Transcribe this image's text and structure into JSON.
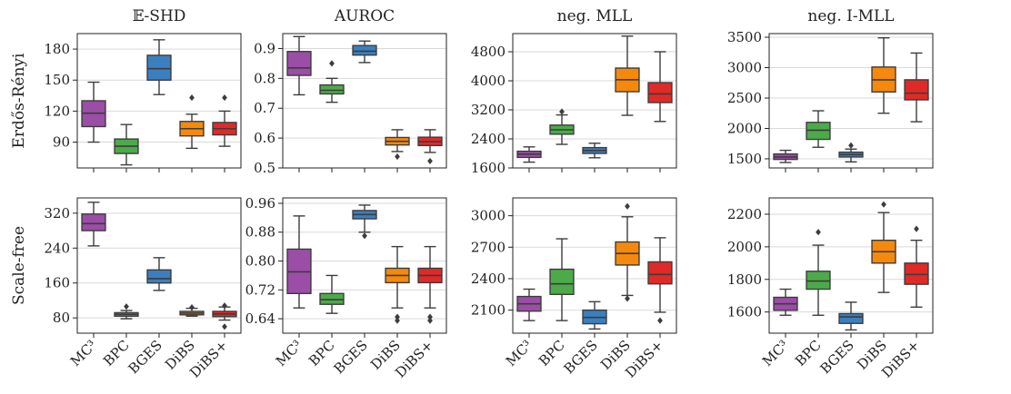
{
  "methods": [
    "MC³",
    "BPC",
    "BGES",
    "DiBS",
    "DiBS+"
  ],
  "colors": {
    "MC³": "#9b4ea6",
    "BPC": "#4daa4a",
    "BGES": "#3b7fbf",
    "DiBS": "#f4890c",
    "DiBS+": "#df2a28",
    "grid": "#d9d9d9",
    "line": "#3c3c3c"
  },
  "chart_data": [
    {
      "type": "box",
      "title": "𝔼-SHD",
      "row_label": "Erdős-Rényi",
      "categories": [
        "MC³",
        "BPC",
        "BGES",
        "DiBS",
        "DiBS+"
      ],
      "ylim": [
        65,
        195
      ],
      "yticks": [
        90,
        120,
        150,
        180
      ],
      "boxes": [
        {
          "name": "MC³",
          "whislo": 90,
          "q1": 105,
          "median": 118,
          "q3": 130,
          "whishi": 148,
          "fliers": []
        },
        {
          "name": "BPC",
          "whislo": 68,
          "q1": 79,
          "median": 86,
          "q3": 93,
          "whishi": 107,
          "fliers": []
        },
        {
          "name": "BGES",
          "whislo": 136,
          "q1": 150,
          "median": 161,
          "q3": 174,
          "whishi": 189,
          "fliers": []
        },
        {
          "name": "DiBS",
          "whislo": 84,
          "q1": 96,
          "median": 103,
          "q3": 110,
          "whishi": 117,
          "fliers": [
            133
          ]
        },
        {
          "name": "DiBS+",
          "whislo": 86,
          "q1": 97,
          "median": 103,
          "q3": 109,
          "whishi": 120,
          "fliers": [
            133
          ]
        }
      ]
    },
    {
      "type": "box",
      "title": "AUROC",
      "row_label": "",
      "categories": [
        "MC³",
        "BPC",
        "BGES",
        "DiBS",
        "DiBS+"
      ],
      "ylim": [
        0.5,
        0.95
      ],
      "yticks": [
        0.5,
        0.6,
        0.7,
        0.8,
        0.9
      ],
      "ytick_labels": [
        "0.5",
        "0.6",
        "0.7",
        "0.8",
        "0.9"
      ],
      "boxes": [
        {
          "name": "MC³",
          "whislo": 0.745,
          "q1": 0.81,
          "median": 0.835,
          "q3": 0.89,
          "whishi": 0.94,
          "fliers": []
        },
        {
          "name": "BPC",
          "whislo": 0.72,
          "q1": 0.748,
          "median": 0.76,
          "q3": 0.778,
          "whishi": 0.8,
          "fliers": [
            0.85
          ]
        },
        {
          "name": "BGES",
          "whislo": 0.853,
          "q1": 0.878,
          "median": 0.891,
          "q3": 0.91,
          "whishi": 0.925,
          "fliers": []
        },
        {
          "name": "DiBS",
          "whislo": 0.555,
          "q1": 0.577,
          "median": 0.589,
          "q3": 0.602,
          "whishi": 0.628,
          "fliers": [
            0.538
          ]
        },
        {
          "name": "DiBS+",
          "whislo": 0.552,
          "q1": 0.575,
          "median": 0.588,
          "q3": 0.603,
          "whishi": 0.628,
          "fliers": [
            0.523
          ]
        }
      ]
    },
    {
      "type": "box",
      "title": "neg. MLL",
      "row_label": "",
      "categories": [
        "MC³",
        "BPC",
        "BGES",
        "DiBS",
        "DiBS+"
      ],
      "ylim": [
        1600,
        5300
      ],
      "yticks": [
        1600,
        2400,
        3200,
        4000,
        4800
      ],
      "boxes": [
        {
          "name": "MC³",
          "whislo": 1760,
          "q1": 1890,
          "median": 1980,
          "q3": 2060,
          "whishi": 2180,
          "fliers": []
        },
        {
          "name": "BPC",
          "whislo": 2250,
          "q1": 2530,
          "median": 2650,
          "q3": 2780,
          "whishi": 3060,
          "fliers": [
            3150
          ]
        },
        {
          "name": "BGES",
          "whislo": 1880,
          "q1": 2000,
          "median": 2080,
          "q3": 2160,
          "whishi": 2280,
          "fliers": []
        },
        {
          "name": "DiBS",
          "whislo": 3050,
          "q1": 3700,
          "median": 4030,
          "q3": 4350,
          "whishi": 5230,
          "fliers": []
        },
        {
          "name": "DiBS+",
          "whislo": 2880,
          "q1": 3400,
          "median": 3640,
          "q3": 3950,
          "whishi": 4800,
          "fliers": []
        }
      ]
    },
    {
      "type": "box",
      "title": "neg. I-MLL",
      "row_label": "",
      "categories": [
        "MC³",
        "BPC",
        "BGES",
        "DiBS",
        "DiBS+"
      ],
      "ylim": [
        1350,
        3560
      ],
      "yticks": [
        1500,
        2000,
        2500,
        3000,
        3500
      ],
      "boxes": [
        {
          "name": "MC³",
          "whislo": 1440,
          "q1": 1490,
          "median": 1530,
          "q3": 1580,
          "whishi": 1640,
          "fliers": []
        },
        {
          "name": "BPC",
          "whislo": 1690,
          "q1": 1820,
          "median": 1970,
          "q3": 2100,
          "whishi": 2290,
          "fliers": []
        },
        {
          "name": "BGES",
          "whislo": 1450,
          "q1": 1530,
          "median": 1570,
          "q3": 1610,
          "whishi": 1660,
          "fliers": [
            1720
          ]
        },
        {
          "name": "DiBS",
          "whislo": 2250,
          "q1": 2600,
          "median": 2800,
          "q3": 3010,
          "whishi": 3490,
          "fliers": []
        },
        {
          "name": "DiBS+",
          "whislo": 2110,
          "q1": 2470,
          "median": 2580,
          "q3": 2800,
          "whishi": 3240,
          "fliers": []
        }
      ]
    },
    {
      "type": "box",
      "title": "",
      "row_label": "Scale-free",
      "categories": [
        "MC³",
        "BPC",
        "BGES",
        "DiBS",
        "DiBS+"
      ],
      "ylim": [
        45,
        355
      ],
      "yticks": [
        80,
        160,
        240,
        320
      ],
      "boxes": [
        {
          "name": "MC³",
          "whislo": 245,
          "q1": 280,
          "median": 296,
          "q3": 318,
          "whishi": 345,
          "fliers": []
        },
        {
          "name": "BPC",
          "whislo": 78,
          "q1": 84,
          "median": 88,
          "q3": 92,
          "whishi": 97,
          "fliers": [
            106
          ]
        },
        {
          "name": "BGES",
          "whislo": 143,
          "q1": 160,
          "median": 170,
          "q3": 190,
          "whishi": 218,
          "fliers": []
        },
        {
          "name": "DiBS",
          "whislo": 84,
          "q1": 87,
          "median": 91,
          "q3": 95,
          "whishi": 102,
          "fliers": [
            104
          ]
        },
        {
          "name": "DiBS+",
          "whislo": 75,
          "q1": 83,
          "median": 89,
          "q3": 95,
          "whishi": 105,
          "fliers": [
            60,
            108
          ]
        }
      ]
    },
    {
      "type": "box",
      "title": "",
      "row_label": "",
      "categories": [
        "MC³",
        "BPC",
        "BGES",
        "DiBS",
        "DiBS+"
      ],
      "ylim": [
        0.6,
        0.975
      ],
      "yticks": [
        0.64,
        0.72,
        0.8,
        0.88,
        0.96
      ],
      "ytick_labels": [
        "0.64",
        "0.72",
        "0.80",
        "0.88",
        "0.96"
      ],
      "boxes": [
        {
          "name": "MC³",
          "whislo": 0.67,
          "q1": 0.71,
          "median": 0.77,
          "q3": 0.833,
          "whishi": 0.925,
          "fliers": []
        },
        {
          "name": "BPC",
          "whislo": 0.655,
          "q1": 0.68,
          "median": 0.693,
          "q3": 0.71,
          "whishi": 0.76,
          "fliers": []
        },
        {
          "name": "BGES",
          "whislo": 0.88,
          "q1": 0.917,
          "median": 0.929,
          "q3": 0.94,
          "whishi": 0.955,
          "fliers": [
            0.87
          ]
        },
        {
          "name": "DiBS",
          "whislo": 0.67,
          "q1": 0.74,
          "median": 0.76,
          "q3": 0.78,
          "whishi": 0.84,
          "fliers": [
            0.645,
            0.635
          ]
        },
        {
          "name": "DiBS+",
          "whislo": 0.67,
          "q1": 0.74,
          "median": 0.76,
          "q3": 0.78,
          "whishi": 0.84,
          "fliers": [
            0.645,
            0.635
          ]
        }
      ]
    },
    {
      "type": "box",
      "title": "",
      "row_label": "",
      "categories": [
        "MC³",
        "BPC",
        "BGES",
        "DiBS",
        "DiBS+"
      ],
      "ylim": [
        1880,
        3170
      ],
      "yticks": [
        2100,
        2400,
        2700,
        3000
      ],
      "boxes": [
        {
          "name": "MC³",
          "whislo": 2000,
          "q1": 2090,
          "median": 2160,
          "q3": 2230,
          "whishi": 2300,
          "fliers": []
        },
        {
          "name": "BPC",
          "whislo": 2000,
          "q1": 2250,
          "median": 2350,
          "q3": 2490,
          "whishi": 2780,
          "fliers": []
        },
        {
          "name": "BGES",
          "whislo": 1920,
          "q1": 1970,
          "median": 2030,
          "q3": 2100,
          "whishi": 2180,
          "fliers": []
        },
        {
          "name": "DiBS",
          "whislo": 2240,
          "q1": 2530,
          "median": 2640,
          "q3": 2750,
          "whishi": 2990,
          "fliers": [
            2210,
            3090
          ]
        },
        {
          "name": "DiBS+",
          "whislo": 2080,
          "q1": 2350,
          "median": 2440,
          "q3": 2560,
          "whishi": 2790,
          "fliers": [
            2000
          ]
        }
      ]
    },
    {
      "type": "box",
      "title": "",
      "row_label": "",
      "categories": [
        "MC³",
        "BPC",
        "BGES",
        "DiBS",
        "DiBS+"
      ],
      "ylim": [
        1470,
        2300
      ],
      "yticks": [
        1600,
        1800,
        2000,
        2200
      ],
      "boxes": [
        {
          "name": "MC³",
          "whislo": 1580,
          "q1": 1610,
          "median": 1650,
          "q3": 1690,
          "whishi": 1740,
          "fliers": []
        },
        {
          "name": "BPC",
          "whislo": 1580,
          "q1": 1740,
          "median": 1790,
          "q3": 1850,
          "whishi": 2010,
          "fliers": [
            2090
          ]
        },
        {
          "name": "BGES",
          "whislo": 1490,
          "q1": 1530,
          "median": 1570,
          "q3": 1590,
          "whishi": 1660,
          "fliers": []
        },
        {
          "name": "DiBS",
          "whislo": 1720,
          "q1": 1900,
          "median": 1970,
          "q3": 2040,
          "whishi": 2210,
          "fliers": [
            2260
          ]
        },
        {
          "name": "DiBS+",
          "whislo": 1630,
          "q1": 1770,
          "median": 1830,
          "q3": 1900,
          "whishi": 2040,
          "fliers": [
            2110
          ]
        }
      ]
    }
  ]
}
